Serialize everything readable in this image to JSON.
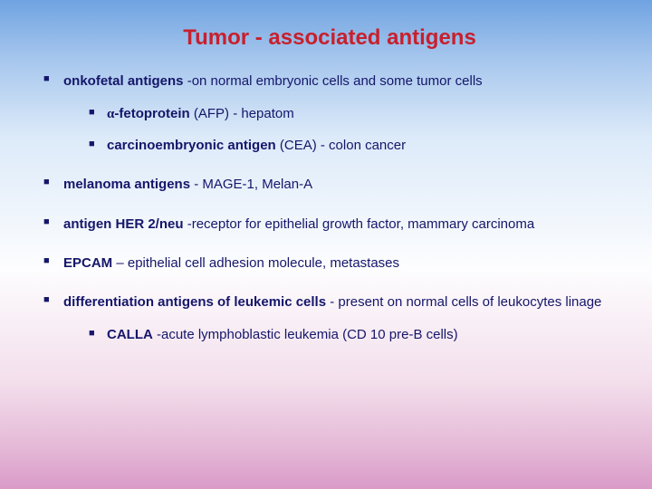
{
  "colors": {
    "title": "#c7202d",
    "text": "#15166a",
    "bullet": "#15166a",
    "gradient_stops": [
      "#6fa3e1",
      "#a6c6ed",
      "#dceaf9",
      "#fdfdfe",
      "#f3dfec",
      "#e4b7d6",
      "#d99ac8"
    ]
  },
  "typography": {
    "title_fontsize": 24,
    "body_fontsize": 15,
    "font_family": "Verdana"
  },
  "title": "Tumor - associated antigens",
  "items": [
    {
      "bold": "onkofetal antigens",
      "rest": " -on normal embryonic cells and some tumor cells",
      "sub": [
        {
          "pre_sym": "α",
          "bold": "-fetoprotein",
          "rest": " (AFP) - hepatom"
        },
        {
          "bold": "carcinoembryonic  antigen",
          "rest": " (CEA) - colon cancer"
        }
      ]
    },
    {
      "bold": "melanoma antigens",
      "rest": " - MAGE-1, Melan-A"
    },
    {
      "bold": "antigen HER 2/neu",
      "rest": " -receptor for epithelial growth factor, mammary carcinoma"
    },
    {
      "bold": "EPCAM",
      "rest": " – epithelial cell adhesion molecule, metastases"
    },
    {
      "bold": "differentiation antigens of leukemic cells",
      "rest": " - present on normal cells of leukocytes linage",
      "sub": [
        {
          "bold": "CALLA",
          "rest": " -acute lymphoblastic leukemia (CD 10 pre-B cells)"
        }
      ]
    }
  ]
}
